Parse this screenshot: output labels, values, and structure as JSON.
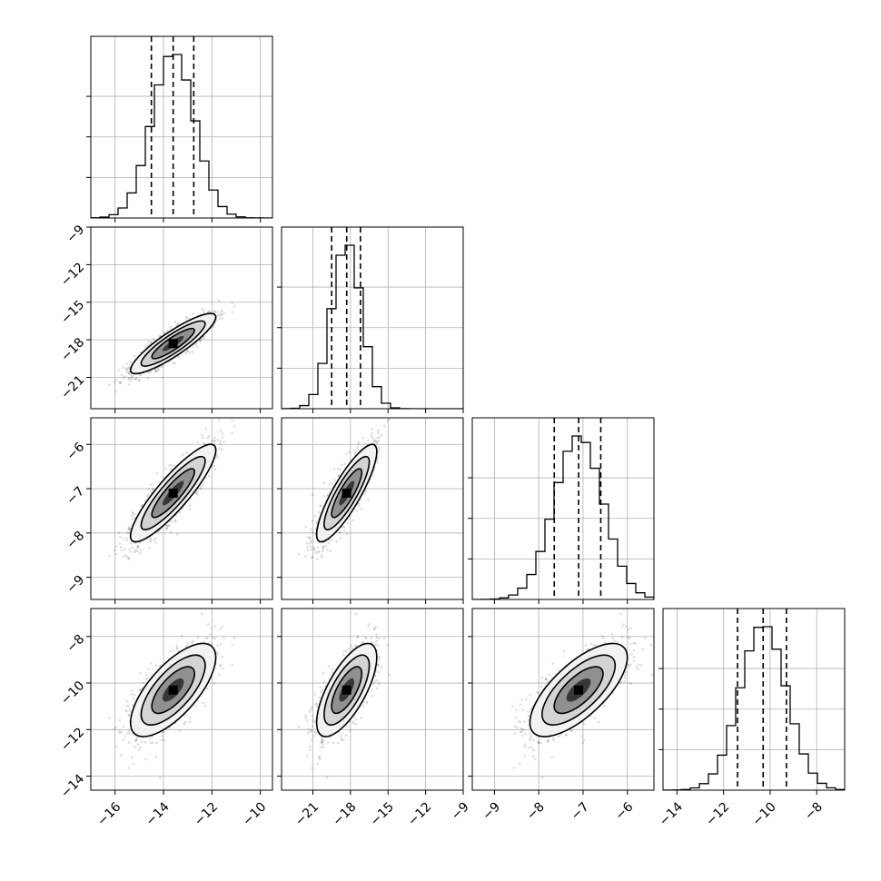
{
  "colors": {
    "hist": "#000000",
    "grid": "#b0b0b0",
    "frame": "#000000",
    "density_low": "#d8d8d8",
    "density_mid": "#9a9a9a",
    "density_high": "#000000"
  },
  "chart_data": {
    "type": "corner",
    "grid": true,
    "params": [
      {
        "range": [
          -17,
          -9.5
        ],
        "ticks": [
          -16,
          -14,
          -12,
          -10
        ],
        "tick_labels": [
          "−16",
          "−14",
          "−12",
          "−10"
        ],
        "mean": -13.6,
        "sd": 0.88,
        "quantiles": [
          -14.5,
          -13.6,
          -12.75
        ]
      },
      {
        "range": [
          -23.5,
          -9
        ],
        "ticks": [
          -21,
          -18,
          -15,
          -12,
          -9
        ],
        "tick_labels": [
          "−21",
          "−18",
          "−15",
          "−12",
          "−9"
        ],
        "mean": -18.3,
        "sd": 1.2,
        "quantiles": [
          -19.5,
          -18.3,
          -17.2
        ]
      },
      {
        "range": [
          -9.5,
          -5.4
        ],
        "ticks": [
          -9,
          -8,
          -7,
          -6
        ],
        "tick_labels": [
          "−9",
          "−8",
          "−7",
          "−6"
        ],
        "mean": -7.1,
        "sd": 0.55,
        "quantiles": [
          -7.65,
          -7.1,
          -6.6
        ]
      },
      {
        "range": [
          -14.6,
          -6.8
        ],
        "ticks": [
          -14,
          -12,
          -10,
          -8
        ],
        "tick_labels": [
          "−14",
          "−12",
          "−10",
          "−8"
        ],
        "mean": -10.3,
        "sd": 1.0,
        "quantiles": [
          -11.4,
          -10.3,
          -9.3
        ]
      }
    ],
    "correlations": [
      [
        1.0,
        0.88,
        0.88,
        0.7
      ],
      [
        0.88,
        1.0,
        0.85,
        0.7
      ],
      [
        0.88,
        0.85,
        1.0,
        0.7
      ],
      [
        0.7,
        0.7,
        0.7,
        1.0
      ]
    ],
    "histogram_bins": 20,
    "contour_levels_sigma": [
      0.5,
      1.0,
      1.5,
      2.0
    ]
  }
}
